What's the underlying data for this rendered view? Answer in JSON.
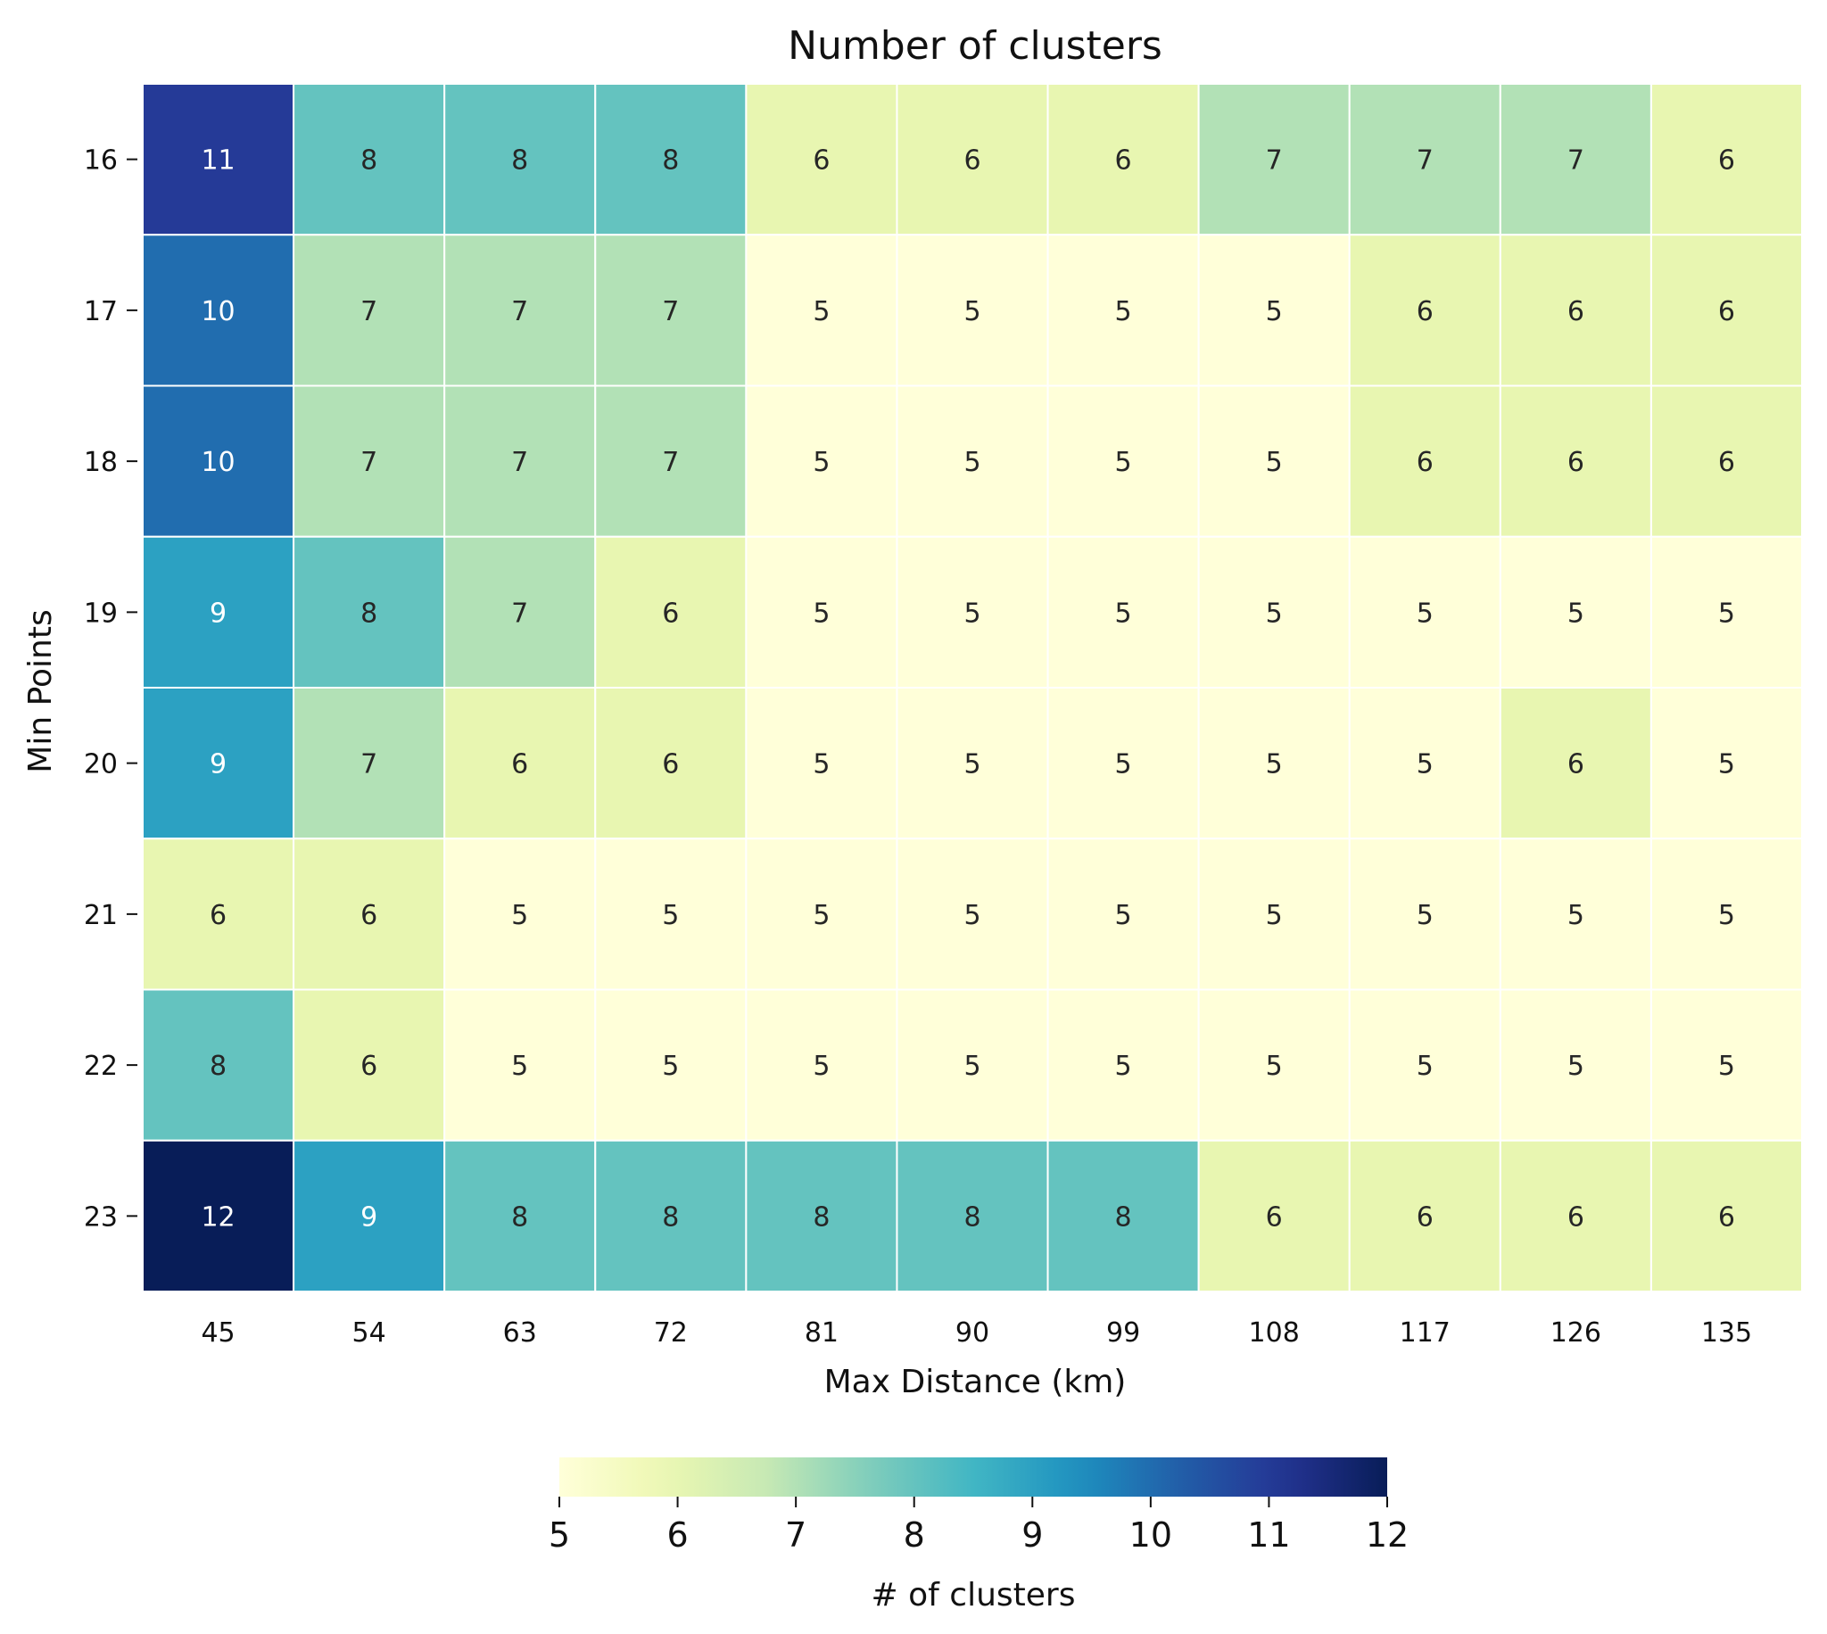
{
  "chart_data": {
    "type": "heatmap",
    "title": "Number of clusters",
    "xlabel": "Max Distance (km)",
    "ylabel": "Min Points",
    "x_categories": [
      "45",
      "54",
      "63",
      "72",
      "81",
      "90",
      "99",
      "108",
      "117",
      "126",
      "135"
    ],
    "y_categories": [
      "16",
      "17",
      "18",
      "19",
      "20",
      "21",
      "22",
      "23"
    ],
    "values": [
      [
        11,
        8,
        8,
        8,
        6,
        6,
        6,
        7,
        7,
        7,
        6
      ],
      [
        10,
        7,
        7,
        7,
        5,
        5,
        5,
        5,
        6,
        6,
        6
      ],
      [
        10,
        7,
        7,
        7,
        5,
        5,
        5,
        5,
        6,
        6,
        6
      ],
      [
        9,
        8,
        7,
        6,
        5,
        5,
        5,
        5,
        5,
        5,
        5
      ],
      [
        9,
        7,
        6,
        6,
        5,
        5,
        5,
        5,
        5,
        6,
        5
      ],
      [
        6,
        6,
        5,
        5,
        5,
        5,
        5,
        5,
        5,
        5,
        5
      ],
      [
        8,
        6,
        5,
        5,
        5,
        5,
        5,
        5,
        5,
        5,
        5
      ],
      [
        12,
        9,
        8,
        8,
        8,
        8,
        8,
        6,
        6,
        6,
        6
      ]
    ],
    "colorbar": {
      "label": "# of clusters",
      "range": [
        5,
        12
      ],
      "ticks": [
        5,
        6,
        7,
        8,
        9,
        10,
        11,
        12
      ],
      "orientation": "horizontal",
      "placement": "bottom",
      "colormap": "YlGnBu"
    },
    "grid": false,
    "cell_annotations": true
  }
}
